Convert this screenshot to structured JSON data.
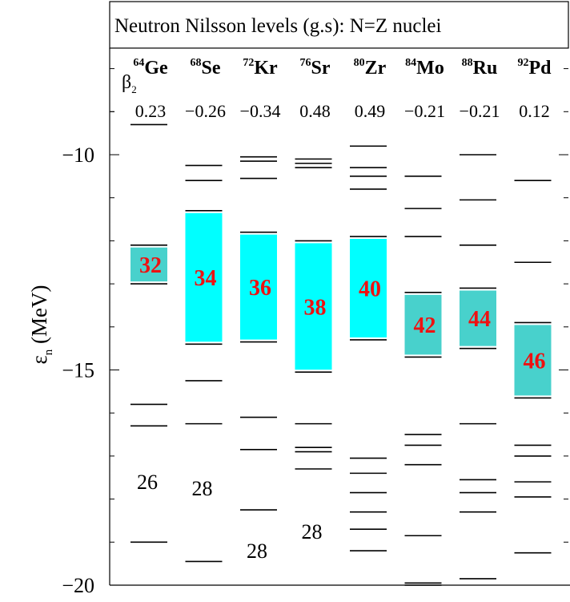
{
  "chart_data": {
    "type": "level-scheme",
    "title": "Neutron Nilsson levels (g.s): N=Z nuclei",
    "ylabel": "ε",
    "ylabel_sub": "n",
    "ylabel_unit": "(MeV)",
    "beta_label": "β",
    "beta_sub": "2",
    "ylim": [
      -20,
      -7.4
    ],
    "yticks": [
      -10,
      -15,
      -20
    ],
    "ytick_labels": [
      "−10",
      "−15",
      "−20"
    ],
    "minor_step": 1,
    "colors": {
      "light": "#00ffff",
      "dark": "#48d1cc",
      "number": "#ee1111",
      "line": "#000000"
    },
    "nuclei": [
      {
        "mass": "64",
        "symbol": "Ge",
        "beta": "0.23",
        "gap_color": "dark",
        "gap_low": -13.0,
        "gap_high": -12.1,
        "gap_label": "32",
        "levels": [
          -9.3,
          -12.1,
          -13.0,
          -15.8,
          -16.3,
          -19.0
        ],
        "shell_labels": [
          {
            "text": "26",
            "y": -17.6
          }
        ]
      },
      {
        "mass": "68",
        "symbol": "Se",
        "beta": "−0.26",
        "gap_color": "light",
        "gap_low": -14.4,
        "gap_high": -11.3,
        "gap_label": "34",
        "levels": [
          -10.25,
          -10.6,
          -11.3,
          -14.4,
          -15.25,
          -16.25,
          -19.45
        ],
        "shell_labels": [
          {
            "text": "28",
            "y": -17.75
          }
        ]
      },
      {
        "mass": "72",
        "symbol": "Kr",
        "beta": "−0.34",
        "gap_color": "light",
        "gap_low": -14.35,
        "gap_high": -11.8,
        "gap_label": "36",
        "levels": [
          -10.05,
          -10.15,
          -10.55,
          -11.8,
          -14.35,
          -16.1,
          -16.85,
          -18.25
        ],
        "shell_labels": [
          {
            "text": "28",
            "y": -19.2
          }
        ]
      },
      {
        "mass": "76",
        "symbol": "Sr",
        "beta": "0.48",
        "gap_color": "light",
        "gap_low": -15.05,
        "gap_high": -12.0,
        "gap_label": "38",
        "levels": [
          -10.1,
          -10.2,
          -10.3,
          -12.0,
          -15.05,
          -16.25,
          -16.8,
          -16.9,
          -17.3
        ],
        "shell_labels": [
          {
            "text": "28",
            "y": -18.75
          }
        ]
      },
      {
        "mass": "80",
        "symbol": "Zr",
        "beta": "0.49",
        "gap_color": "light",
        "gap_low": -14.3,
        "gap_high": -11.9,
        "gap_label": "40",
        "levels": [
          -9.8,
          -10.3,
          -10.5,
          -10.8,
          -11.9,
          -14.3,
          -17.05,
          -17.4,
          -17.85,
          -18.3,
          -18.7,
          -19.2
        ],
        "shell_labels": []
      },
      {
        "mass": "84",
        "symbol": "Mo",
        "beta": "−0.21",
        "gap_color": "dark",
        "gap_low": -14.7,
        "gap_high": -13.2,
        "gap_label": "42",
        "levels": [
          -10.5,
          -11.25,
          -11.9,
          -13.2,
          -14.7,
          -16.5,
          -16.75,
          -17.2,
          -18.85,
          -19.95,
          -20.0
        ],
        "shell_labels": []
      },
      {
        "mass": "88",
        "symbol": "Ru",
        "beta": "−0.21",
        "gap_color": "dark",
        "gap_low": -14.5,
        "gap_high": -13.1,
        "gap_label": "44",
        "levels": [
          -10.0,
          -11.05,
          -12.1,
          -13.1,
          -14.5,
          -16.25,
          -17.55,
          -17.85,
          -18.3,
          -19.85
        ],
        "shell_labels": []
      },
      {
        "mass": "92",
        "symbol": "Pd",
        "beta": "0.12",
        "gap_color": "dark",
        "gap_low": -15.65,
        "gap_high": -13.9,
        "gap_label": "46",
        "levels": [
          -10.6,
          -12.5,
          -13.9,
          -15.65,
          -16.75,
          -17.0,
          -17.6,
          -17.95,
          -19.25
        ],
        "shell_labels": []
      }
    ]
  }
}
